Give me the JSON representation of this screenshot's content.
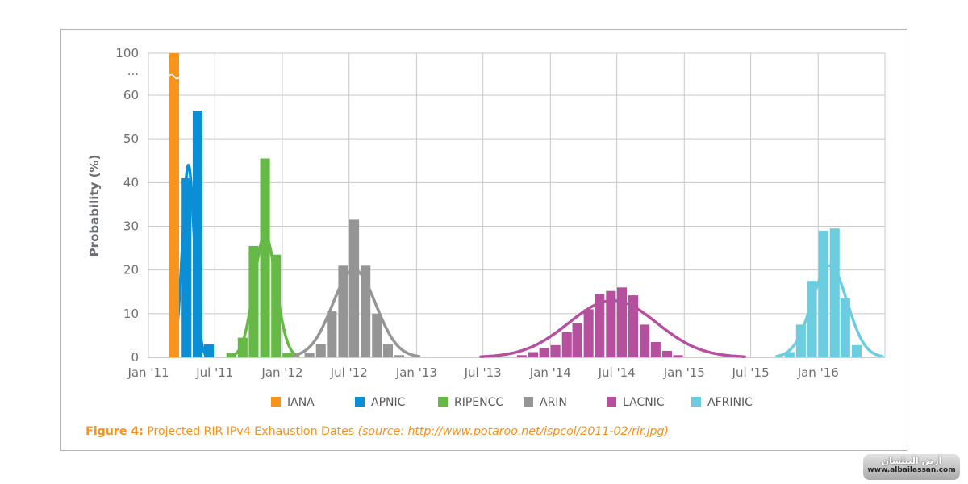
{
  "chart_data": {
    "type": "bar",
    "ylabel": "Probability (%)",
    "y_ticks": [
      "0",
      "10",
      "20",
      "30",
      "40",
      "50",
      "60",
      "...",
      "100"
    ],
    "y_break": true,
    "x_ticks": [
      "Jan '11",
      "Jul '11",
      "Jan '12",
      "Jul '12",
      "Jan '13",
      "Jul '13",
      "Jan '14",
      "Jul '14",
      "Jan '15",
      "Jul '15",
      "Jan '16"
    ],
    "grid": true,
    "legend_position": "bottom",
    "series": [
      {
        "name": "IANA",
        "color": "#f7941d",
        "bars": [
          [
            "2011-02-01",
            100
          ]
        ],
        "curve": false
      },
      {
        "name": "APNIC",
        "color": "#0a8fd6",
        "bars": [
          [
            "2011-04-15",
            41
          ],
          [
            "2011-05-15",
            56.5
          ],
          [
            "2011-06-15",
            3
          ]
        ],
        "curve": true,
        "mean": "2011-04-20",
        "sd_days": 16,
        "peak": 44
      },
      {
        "name": "RIPENCC",
        "color": "#67b947",
        "bars": [
          [
            "2011-08-15",
            1
          ],
          [
            "2011-09-15",
            4.5
          ],
          [
            "2011-10-15",
            25.5
          ],
          [
            "2011-11-15",
            45.5
          ],
          [
            "2011-12-15",
            23.5
          ],
          [
            "2012-01-15",
            1
          ]
        ],
        "curve": true,
        "mean": "2011-11-15",
        "sd_days": 30,
        "peak": 28
      },
      {
        "name": "ARIN",
        "color": "#959595",
        "bars": [
          [
            "2012-03-15",
            1
          ],
          [
            "2012-04-15",
            3
          ],
          [
            "2012-05-15",
            10.5
          ],
          [
            "2012-06-15",
            21
          ],
          [
            "2012-07-15",
            31.5
          ],
          [
            "2012-08-15",
            21
          ],
          [
            "2012-09-15",
            10
          ],
          [
            "2012-10-15",
            3
          ],
          [
            "2012-11-15",
            0.5
          ]
        ],
        "curve": true,
        "mean": "2012-07-15",
        "sd_days": 59,
        "peak": 20
      },
      {
        "name": "LACNIC",
        "color": "#b5509f",
        "bars": [
          [
            "2013-10-15",
            0.5
          ],
          [
            "2013-11-15",
            1.2
          ],
          [
            "2013-12-15",
            2.2
          ],
          [
            "2014-01-15",
            2.8
          ],
          [
            "2014-02-15",
            5.8
          ],
          [
            "2014-03-15",
            7.8
          ],
          [
            "2014-04-15",
            11
          ],
          [
            "2014-05-15",
            14.5
          ],
          [
            "2014-06-15",
            15.2
          ],
          [
            "2014-07-15",
            16
          ],
          [
            "2014-08-15",
            14.2
          ],
          [
            "2014-09-15",
            7.5
          ],
          [
            "2014-10-15",
            3.5
          ],
          [
            "2014-11-15",
            1.5
          ],
          [
            "2014-12-15",
            0.5
          ]
        ],
        "curve": true,
        "mean": "2014-06-20",
        "sd_days": 120,
        "peak": 13
      },
      {
        "name": "AFRINIC",
        "color": "#6dcde0",
        "bars": [
          [
            "2015-10-15",
            1.2
          ],
          [
            "2015-11-15",
            7.5
          ],
          [
            "2015-12-15",
            17.5
          ],
          [
            "2016-01-15",
            29
          ],
          [
            "2016-02-15",
            29.5
          ],
          [
            "2016-03-15",
            13.5
          ],
          [
            "2016-04-15",
            2.8
          ]
        ],
        "curve": true,
        "mean": "2016-02-01",
        "sd_days": 48,
        "peak": 21
      }
    ]
  },
  "caption": {
    "lead": "Figure 4:",
    "main": " Projected RIR IPv4 Exhaustion Dates ",
    "source": "(source: http://www.potaroo.net/ispcol/2011-02/rir.jpg)"
  },
  "watermark": {
    "arabic": "أرض البيلسان",
    "url": "www.albailassan.com"
  }
}
